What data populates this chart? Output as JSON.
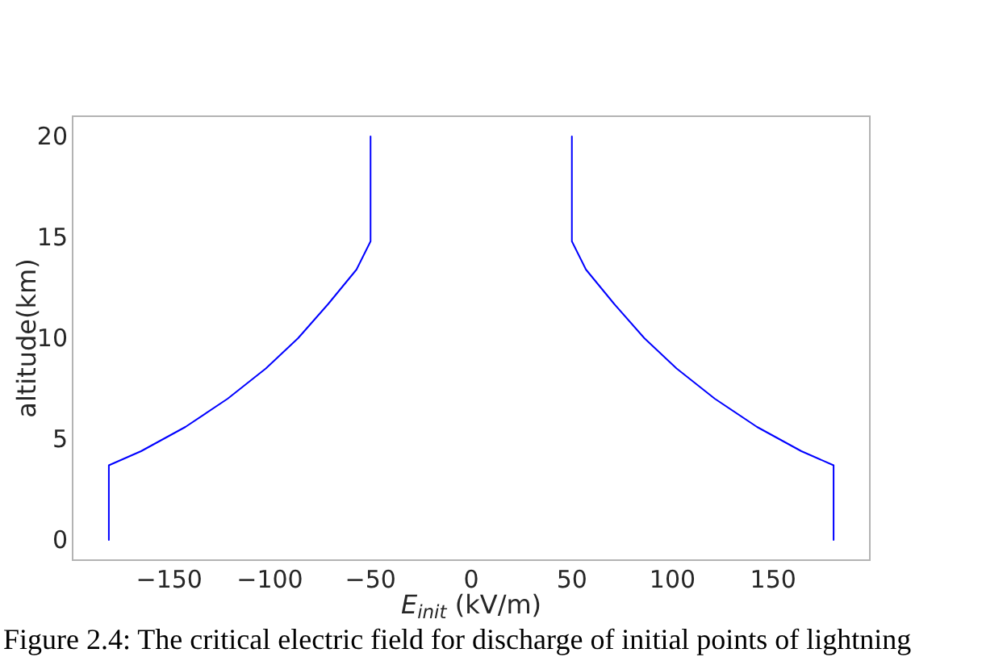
{
  "chart_data": {
    "type": "line",
    "xlabel": "E$_{init}$ (kV/m)",
    "ylabel": "altitude(km)",
    "xlim": [
      -198,
      198
    ],
    "ylim": [
      -1,
      21
    ],
    "xticks": [
      {
        "value": -150,
        "label": "−150"
      },
      {
        "value": -100,
        "label": "−100"
      },
      {
        "value": -50,
        "label": "−50"
      },
      0,
      50,
      100,
      150
    ],
    "yticks": [
      0,
      5,
      10,
      15,
      20
    ],
    "series": [
      {
        "color": "#0000ff",
        "x": [
          -180,
          -180,
          -164,
          -142,
          -121,
          -102,
          -86,
          -71,
          -57,
          -50,
          -50
        ],
        "values": [
          0,
          3.7,
          4.4,
          5.6,
          7,
          8.5,
          10,
          11.7,
          13.4,
          14.8,
          20
        ]
      },
      {
        "color": "#0000ff",
        "x": [
          180,
          180,
          164,
          142,
          121,
          102,
          86,
          71,
          57,
          50,
          50
        ],
        "values": [
          0,
          3.7,
          4.4,
          5.6,
          7,
          8.5,
          10,
          11.7,
          13.4,
          14.8,
          20
        ]
      }
    ],
    "annotations": [
      "Figure 2.4: The critical electric field for discharge of initial points of lightning"
    ]
  }
}
